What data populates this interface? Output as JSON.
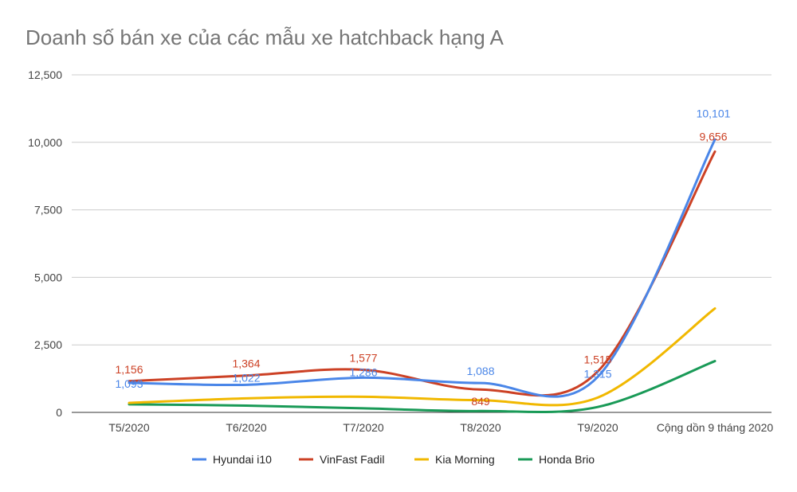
{
  "chart_data": {
    "type": "line",
    "title": "Doanh số bán xe của các mẫu xe hatchback hạng A",
    "categories": [
      "T5/2020",
      "T6/2020",
      "T7/2020",
      "T8/2020",
      "T9/2020",
      "Cộng dồn 9 tháng 2020"
    ],
    "ylim": [
      0,
      12500
    ],
    "yticks": [
      0,
      2500,
      5000,
      7500,
      10000,
      12500
    ],
    "ytick_labels": [
      "0",
      "2,500",
      "5,000",
      "7,500",
      "10,000",
      "12,500"
    ],
    "grid": true,
    "legend_position": "bottom",
    "smooth": true,
    "series": [
      {
        "name": "Hyundai i10",
        "color": "#4a86e8",
        "values": [
          1093,
          1022,
          1286,
          1088,
          1315,
          10101
        ],
        "labels": [
          "1,093",
          "1,022",
          "1,286",
          "1,088",
          "1,315",
          "10,101"
        ]
      },
      {
        "name": "VinFast Fadil",
        "color": "#cc4125",
        "values": [
          1156,
          1364,
          1577,
          849,
          1515,
          9656
        ],
        "labels": [
          "1,156",
          "1,364",
          "1,577",
          "849",
          "1,515",
          "9,656"
        ]
      },
      {
        "name": "Kia Morning",
        "color": "#f1b800",
        "values": [
          350,
          520,
          580,
          450,
          550,
          3850
        ],
        "labels": []
      },
      {
        "name": "Honda Brio",
        "color": "#199a57",
        "values": [
          300,
          250,
          150,
          50,
          200,
          1900
        ],
        "labels": []
      }
    ]
  }
}
